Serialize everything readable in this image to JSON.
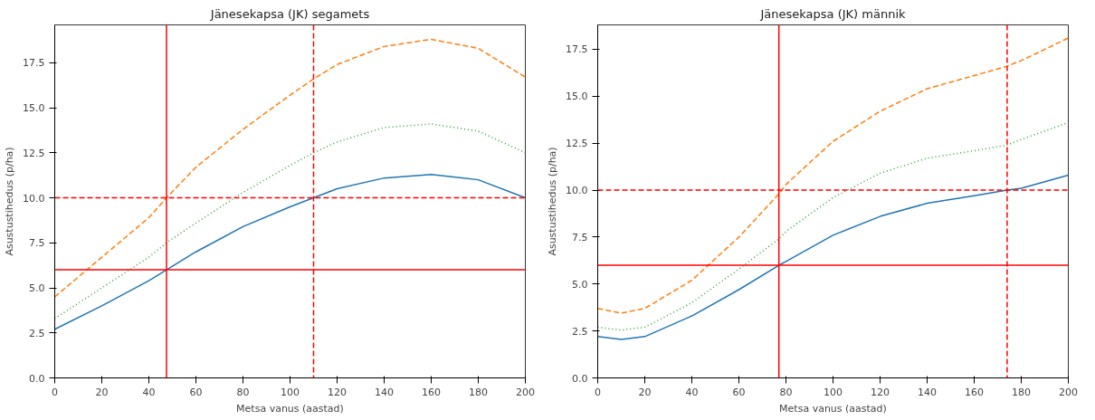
{
  "chart_data": [
    {
      "type": "line",
      "title": "Jänesekapsa (JK) segamets",
      "xlabel": "Metsa vanus (aastad)",
      "ylabel": "Asustustihedus (p/ha)",
      "xlim": [
        0,
        200
      ],
      "ylim": [
        0,
        19.6
      ],
      "xticks": [
        0,
        20,
        40,
        60,
        80,
        100,
        120,
        140,
        160,
        180,
        200
      ],
      "yticks": [
        {
          "value": 0,
          "label": "0.0"
        },
        {
          "value": 2.5,
          "label": "2.5"
        },
        {
          "value": 5,
          "label": "5.0"
        },
        {
          "value": 7.5,
          "label": "7.5"
        },
        {
          "value": 10,
          "label": "10.0"
        },
        {
          "value": 12.5,
          "label": "12.5"
        },
        {
          "value": 15,
          "label": "15.0"
        },
        {
          "value": 17.5,
          "label": "17.5"
        }
      ],
      "grid": false,
      "series": [
        {
          "color": "#1f77b4",
          "line_style": "solid",
          "x": [
            0,
            20,
            40,
            47.5,
            60,
            80,
            100,
            110,
            120,
            140,
            160,
            180,
            200
          ],
          "values": [
            2.7,
            4.0,
            5.4,
            6.0,
            7.0,
            8.4,
            9.5,
            10.0,
            10.5,
            11.1,
            11.3,
            11.0,
            10.0
          ]
        },
        {
          "color": "#ff7f0e",
          "line_style": "dashed",
          "x": [
            0,
            20,
            40,
            47.5,
            60,
            80,
            100,
            110,
            120,
            140,
            160,
            180,
            200
          ],
          "values": [
            4.5,
            6.7,
            8.9,
            10.0,
            11.7,
            13.8,
            15.7,
            16.6,
            17.4,
            18.4,
            18.8,
            18.3,
            16.7
          ]
        },
        {
          "color": "#2ca02c",
          "line_style": "dotted",
          "x": [
            0,
            20,
            40,
            47.5,
            60,
            80,
            100,
            110,
            120,
            140,
            160,
            180,
            200
          ],
          "values": [
            3.3,
            5.0,
            6.7,
            7.5,
            8.6,
            10.3,
            11.8,
            12.5,
            13.1,
            13.9,
            14.1,
            13.7,
            12.5
          ]
        }
      ],
      "ref_lines": [
        {
          "axis": "y",
          "value": 6,
          "color": "#ff0000",
          "line_style": "solid"
        },
        {
          "axis": "y",
          "value": 10,
          "color": "#ff0000",
          "line_style": "dashed"
        },
        {
          "axis": "x",
          "value": 47.5,
          "color": "#ff0000",
          "line_style": "solid"
        },
        {
          "axis": "x",
          "value": 110,
          "color": "#ff0000",
          "line_style": "dashed"
        }
      ]
    },
    {
      "type": "line",
      "title": "Jänesekapsa (JK) männik",
      "xlabel": "Metsa vanus (aastad)",
      "ylabel": "Asustustihedus (p/ha)",
      "xlim": [
        0,
        200
      ],
      "ylim": [
        0,
        18.8
      ],
      "xticks": [
        0,
        20,
        40,
        60,
        80,
        100,
        120,
        140,
        160,
        180,
        200
      ],
      "yticks": [
        {
          "value": 0,
          "label": "0.0"
        },
        {
          "value": 2.5,
          "label": "2.5"
        },
        {
          "value": 5,
          "label": "5.0"
        },
        {
          "value": 7.5,
          "label": "7.5"
        },
        {
          "value": 10,
          "label": "10.0"
        },
        {
          "value": 12.5,
          "label": "12.5"
        },
        {
          "value": 15,
          "label": "15.0"
        },
        {
          "value": 17.5,
          "label": "17.5"
        }
      ],
      "grid": false,
      "series": [
        {
          "color": "#1f77b4",
          "line_style": "solid",
          "x": [
            0,
            10,
            20,
            40,
            60,
            77,
            80,
            100,
            120,
            140,
            160,
            174,
            180,
            200
          ],
          "values": [
            2.2,
            2.05,
            2.2,
            3.3,
            4.7,
            6.0,
            6.2,
            7.6,
            8.6,
            9.3,
            9.7,
            10.0,
            10.1,
            10.8
          ]
        },
        {
          "color": "#ff7f0e",
          "line_style": "dashed",
          "x": [
            0,
            10,
            20,
            40,
            60,
            77,
            80,
            100,
            120,
            140,
            160,
            174,
            180,
            200
          ],
          "values": [
            3.7,
            3.45,
            3.7,
            5.2,
            7.5,
            9.8,
            10.3,
            12.6,
            14.2,
            15.4,
            16.1,
            16.6,
            16.9,
            18.1
          ]
        },
        {
          "color": "#2ca02c",
          "line_style": "dotted",
          "x": [
            0,
            10,
            20,
            40,
            60,
            77,
            80,
            100,
            120,
            140,
            160,
            174,
            180,
            200
          ],
          "values": [
            2.7,
            2.55,
            2.7,
            4.0,
            5.8,
            7.4,
            7.8,
            9.6,
            10.9,
            11.7,
            12.1,
            12.4,
            12.7,
            13.6
          ]
        }
      ],
      "ref_lines": [
        {
          "axis": "y",
          "value": 6,
          "color": "#ff0000",
          "line_style": "solid"
        },
        {
          "axis": "y",
          "value": 10,
          "color": "#ff0000",
          "line_style": "dashed"
        },
        {
          "axis": "x",
          "value": 77,
          "color": "#ff0000",
          "line_style": "solid"
        },
        {
          "axis": "x",
          "value": 174,
          "color": "#ff0000",
          "line_style": "dashed"
        }
      ]
    }
  ]
}
